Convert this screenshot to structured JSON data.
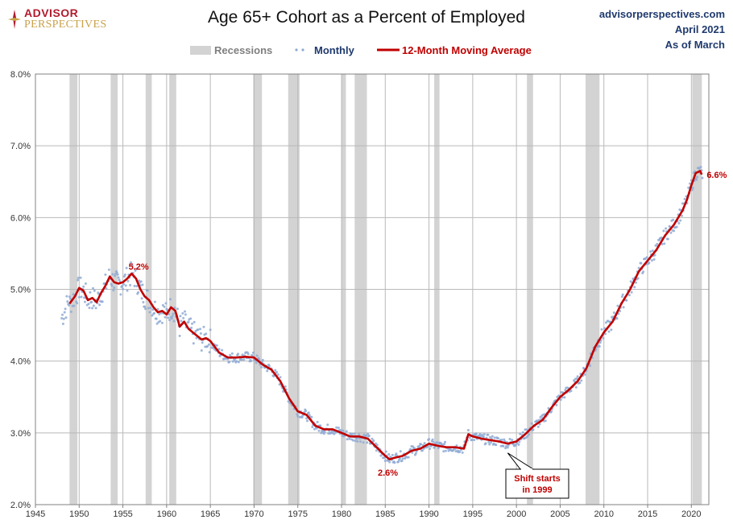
{
  "branding": {
    "logo_line1": "ADVISOR",
    "logo_line2": "PERSPECTIVES",
    "logo_icon": "compass-rose-icon"
  },
  "source": {
    "site": "advisorperspectives.com",
    "date": "April 2021",
    "as_of": "As of March"
  },
  "chart_data": {
    "type": "line",
    "title": "Age 65+ Cohort as a Percent of Employed",
    "xlim": [
      1945,
      2022
    ],
    "ylim": [
      2.0,
      8.0
    ],
    "x_ticks": [
      1945,
      1950,
      1955,
      1960,
      1965,
      1970,
      1975,
      1980,
      1985,
      1990,
      1995,
      2000,
      2005,
      2010,
      2015,
      2020
    ],
    "x_tick_labels": [
      "1945",
      "1950",
      "1955",
      "1960",
      "1965",
      "1970",
      "1975",
      "1980",
      "1985",
      "1990",
      "1995",
      "2000",
      "2005",
      "2010",
      "2015",
      "2020"
    ],
    "y_ticks": [
      2,
      3,
      4,
      5,
      6,
      7,
      8
    ],
    "y_tick_labels": [
      "2.0%",
      "3.0%",
      "4.0%",
      "5.0%",
      "6.0%",
      "7.0%",
      "8.0%"
    ],
    "grid": true,
    "legend": {
      "position": "top-center",
      "entries": [
        "Recessions",
        "Monthly",
        "12-Month Moving Average"
      ]
    },
    "colors": {
      "recession": "#d3d3d3",
      "monthly": "#8faad4",
      "moving_average": "#c00000",
      "grid": "#b9b9b9",
      "annotation_box": "#c00000"
    },
    "recessions": [
      [
        1948.9,
        1949.8
      ],
      [
        1953.6,
        1954.4
      ],
      [
        1957.6,
        1958.3
      ],
      [
        1960.3,
        1961.1
      ],
      [
        1969.9,
        1970.9
      ],
      [
        1973.9,
        1975.2
      ],
      [
        1980.0,
        1980.5
      ],
      [
        1981.5,
        1982.9
      ],
      [
        1990.6,
        1991.2
      ],
      [
        2001.2,
        2001.9
      ],
      [
        2007.9,
        2009.5
      ],
      [
        2020.1,
        2021.2
      ]
    ],
    "series": [
      {
        "name": "12-Month Moving Average",
        "x": [
          1948.9,
          1949.5,
          1950.0,
          1950.5,
          1951.0,
          1951.5,
          1952.0,
          1952.5,
          1953.0,
          1953.5,
          1954.0,
          1954.5,
          1955.0,
          1955.5,
          1956.0,
          1956.5,
          1957.0,
          1957.5,
          1958.0,
          1958.5,
          1959.0,
          1959.5,
          1960.0,
          1960.5,
          1961.0,
          1961.5,
          1962.0,
          1962.5,
          1963.0,
          1963.5,
          1964.0,
          1964.5,
          1965.0,
          1966.0,
          1967.0,
          1968.0,
          1969.0,
          1970.0,
          1971.0,
          1972.0,
          1973.0,
          1974.0,
          1975.0,
          1976.0,
          1977.0,
          1978.0,
          1979.0,
          1980.0,
          1981.0,
          1982.0,
          1983.0,
          1984.0,
          1985.0,
          1985.5,
          1986.0,
          1987.0,
          1988.0,
          1989.0,
          1990.0,
          1991.0,
          1992.0,
          1993.0,
          1994.0,
          1994.5,
          1995.0,
          1996.0,
          1997.0,
          1998.0,
          1999.0,
          2000.0,
          2001.0,
          2002.0,
          2003.0,
          2004.0,
          2005.0,
          2006.0,
          2007.0,
          2008.0,
          2009.0,
          2010.0,
          2011.0,
          2012.0,
          2013.0,
          2014.0,
          2015.0,
          2016.0,
          2017.0,
          2018.0,
          2019.0,
          2019.5,
          2020.0,
          2020.5,
          2021.0,
          2021.2
        ],
        "values": [
          4.8,
          4.9,
          5.02,
          4.98,
          4.85,
          4.88,
          4.82,
          4.95,
          5.05,
          5.18,
          5.1,
          5.08,
          5.1,
          5.15,
          5.22,
          5.15,
          5.0,
          4.9,
          4.85,
          4.75,
          4.68,
          4.7,
          4.65,
          4.75,
          4.7,
          4.48,
          4.55,
          4.45,
          4.4,
          4.35,
          4.3,
          4.32,
          4.28,
          4.12,
          4.05,
          4.05,
          4.06,
          4.05,
          3.95,
          3.88,
          3.72,
          3.48,
          3.3,
          3.25,
          3.1,
          3.05,
          3.05,
          3.0,
          2.95,
          2.95,
          2.92,
          2.8,
          2.68,
          2.63,
          2.65,
          2.68,
          2.75,
          2.78,
          2.85,
          2.82,
          2.8,
          2.8,
          2.78,
          2.98,
          2.95,
          2.92,
          2.9,
          2.88,
          2.85,
          2.88,
          2.98,
          3.1,
          3.18,
          3.35,
          3.5,
          3.6,
          3.72,
          3.9,
          4.2,
          4.4,
          4.55,
          4.8,
          5.0,
          5.25,
          5.4,
          5.55,
          5.75,
          5.9,
          6.1,
          6.25,
          6.45,
          6.62,
          6.65,
          6.6
        ]
      },
      {
        "name": "Monthly"
      }
    ],
    "annotations": [
      {
        "text": "5.2%",
        "x": 1956.8,
        "y": 5.32,
        "color": "#c00000"
      },
      {
        "text": "2.6%",
        "x": 1985.3,
        "y": 2.45,
        "color": "#c00000"
      },
      {
        "text": "6.6%",
        "x": 2021.2,
        "y": 6.6,
        "color": "#c00000"
      }
    ],
    "callout": {
      "line1": "Shift starts",
      "line2": "in 1999",
      "point_x": 1999.0,
      "point_y": 2.72
    }
  }
}
